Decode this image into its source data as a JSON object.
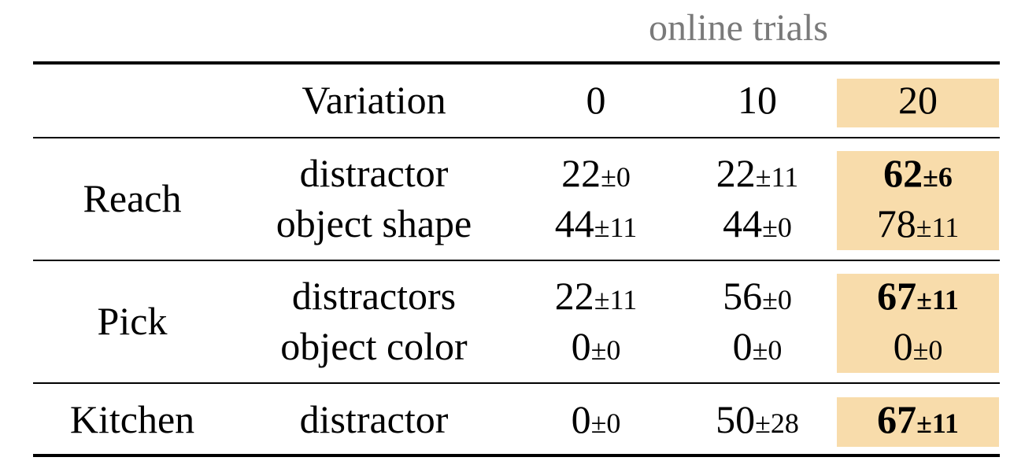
{
  "table": {
    "group_header": "online trials",
    "columns": [
      "Variation",
      "0",
      "10",
      "20"
    ],
    "highlight_color": "#f8dcab",
    "groups": [
      {
        "task": "Reach",
        "rows": [
          {
            "variation": "distractor",
            "values": [
              {
                "mean": "22",
                "pm": "±0"
              },
              {
                "mean": "22",
                "pm": "±11"
              },
              {
                "mean": "62",
                "pm": "±6",
                "bold": true
              }
            ]
          },
          {
            "variation": "object shape",
            "values": [
              {
                "mean": "44",
                "pm": "±11"
              },
              {
                "mean": "44",
                "pm": "±0"
              },
              {
                "mean": "78",
                "pm": "±11"
              }
            ]
          }
        ]
      },
      {
        "task": "Pick",
        "rows": [
          {
            "variation": "distractors",
            "values": [
              {
                "mean": "22",
                "pm": "±11"
              },
              {
                "mean": "56",
                "pm": "±0"
              },
              {
                "mean": "67",
                "pm": "±11",
                "bold": true
              }
            ]
          },
          {
            "variation": "object color",
            "values": [
              {
                "mean": "0",
                "pm": "±0"
              },
              {
                "mean": "0",
                "pm": "±0"
              },
              {
                "mean": "0",
                "pm": "±0"
              }
            ]
          }
        ]
      },
      {
        "task": "Kitchen",
        "rows": [
          {
            "variation": "distractor",
            "values": [
              {
                "mean": "0",
                "pm": "±0"
              },
              {
                "mean": "50",
                "pm": "±28"
              },
              {
                "mean": "67",
                "pm": "±11",
                "bold": true
              }
            ]
          }
        ]
      }
    ]
  }
}
